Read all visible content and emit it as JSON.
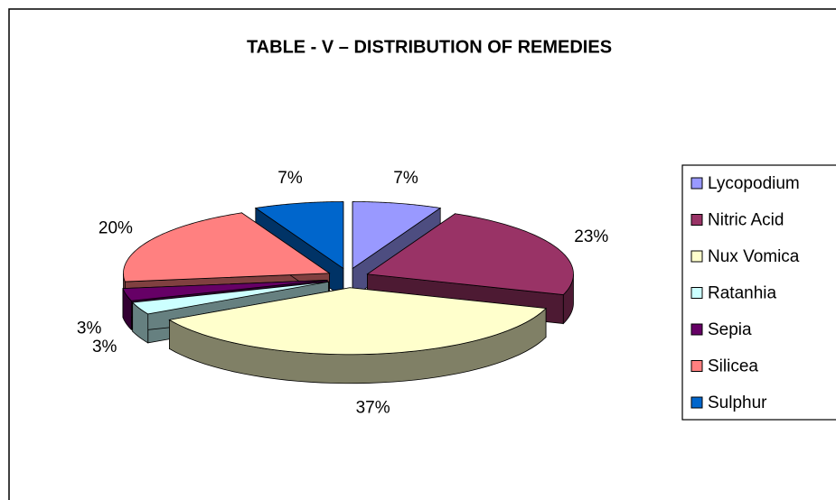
{
  "chart_data": {
    "type": "pie3d",
    "title": "TABLE - V – DISTRIBUTION OF REMEDIES",
    "categories": [
      "Lycopodium",
      "Nitric Acid",
      "Nux Vomica",
      "Ratanhia",
      "Sepia",
      "Silicea",
      "Sulphur"
    ],
    "values": [
      7,
      23,
      37,
      3,
      3,
      20,
      7
    ],
    "value_labels": [
      "7%",
      "23%",
      "37%",
      "3%",
      "3%",
      "20%",
      "7%"
    ],
    "colors": [
      "#9999ff",
      "#993366",
      "#ffffcc",
      "#ccffff",
      "#660066",
      "#ff8080",
      "#0066cc"
    ],
    "legend": "right"
  }
}
